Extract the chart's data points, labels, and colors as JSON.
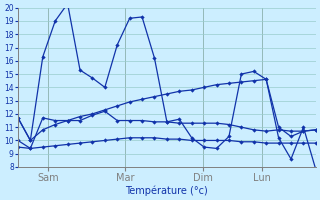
{
  "background_color": "#cceeff",
  "grid_color": "#99cccc",
  "line_color": "#1133aa",
  "xlabel": "Température (°c)",
  "ylim": [
    8,
    20
  ],
  "yticks": [
    8,
    9,
    10,
    11,
    12,
    13,
    14,
    15,
    16,
    17,
    18,
    19,
    20
  ],
  "day_labels": [
    "Sam",
    "Mar",
    "Dim",
    "Lun"
  ],
  "day_positions": [
    0.1,
    0.36,
    0.62,
    0.82
  ],
  "series": [
    [
      11.7,
      10.0,
      16.3,
      19.0,
      20.3,
      15.3,
      14.7,
      14.0,
      17.2,
      19.2,
      19.3,
      16.2,
      11.4,
      11.6,
      10.2,
      9.5,
      9.4,
      10.3,
      15.0,
      15.2,
      14.6,
      10.2,
      8.6,
      11.0,
      7.8
    ],
    [
      10.0,
      9.4,
      11.7,
      11.5,
      11.5,
      11.5,
      11.9,
      12.2,
      11.5,
      11.5,
      11.5,
      11.4,
      11.4,
      11.3,
      11.3,
      11.3,
      11.3,
      11.2,
      11.0,
      10.8,
      10.7,
      10.8,
      10.7,
      10.7,
      10.8
    ],
    [
      9.5,
      9.4,
      9.5,
      9.6,
      9.7,
      9.8,
      9.9,
      10.0,
      10.1,
      10.2,
      10.2,
      10.2,
      10.1,
      10.1,
      10.0,
      10.0,
      10.0,
      10.0,
      9.9,
      9.9,
      9.8,
      9.8,
      9.8,
      9.8,
      9.8
    ],
    [
      11.7,
      10.0,
      10.8,
      11.2,
      11.5,
      11.8,
      12.0,
      12.3,
      12.6,
      12.9,
      13.1,
      13.3,
      13.5,
      13.7,
      13.8,
      14.0,
      14.2,
      14.3,
      14.4,
      14.5,
      14.6,
      11.0,
      10.3,
      10.7,
      10.8
    ]
  ],
  "num_points": 25
}
